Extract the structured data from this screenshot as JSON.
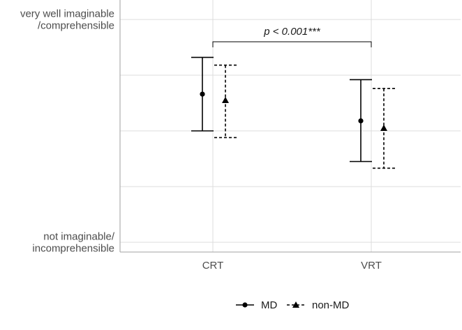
{
  "chart_data": {
    "type": "errorbar",
    "title": "",
    "xlabel": "",
    "ylabel": "",
    "categories": [
      "CRT",
      "VRT"
    ],
    "ylim": [
      1,
      5
    ],
    "y_ticks": [
      {
        "value": 5,
        "label_lines": [
          "very well imaginable",
          "/comprehensible"
        ]
      },
      {
        "value": 4,
        "label_lines": []
      },
      {
        "value": 3,
        "label_lines": []
      },
      {
        "value": 2,
        "label_lines": []
      },
      {
        "value": 1,
        "label_lines": [
          "not imaginable/",
          "incomprehensible"
        ]
      }
    ],
    "grid": true,
    "legend_position": "bottom",
    "series": [
      {
        "name": "MD",
        "marker": "circle",
        "line_style": "solid",
        "color": "#000000",
        "points": [
          {
            "category": "CRT",
            "mean": 3.66,
            "lower": 3.0,
            "upper": 4.32
          },
          {
            "category": "VRT",
            "mean": 3.18,
            "lower": 2.45,
            "upper": 3.92
          }
        ]
      },
      {
        "name": "non-MD",
        "marker": "triangle",
        "line_style": "dashed",
        "color": "#000000",
        "points": [
          {
            "category": "CRT",
            "mean": 3.55,
            "lower": 2.88,
            "upper": 4.18
          },
          {
            "category": "VRT",
            "mean": 3.05,
            "lower": 2.33,
            "upper": 3.76
          }
        ]
      }
    ],
    "annotations": [
      {
        "text": "p < 0.001***",
        "from": "CRT",
        "to": "VRT",
        "y": 4.6
      }
    ]
  }
}
